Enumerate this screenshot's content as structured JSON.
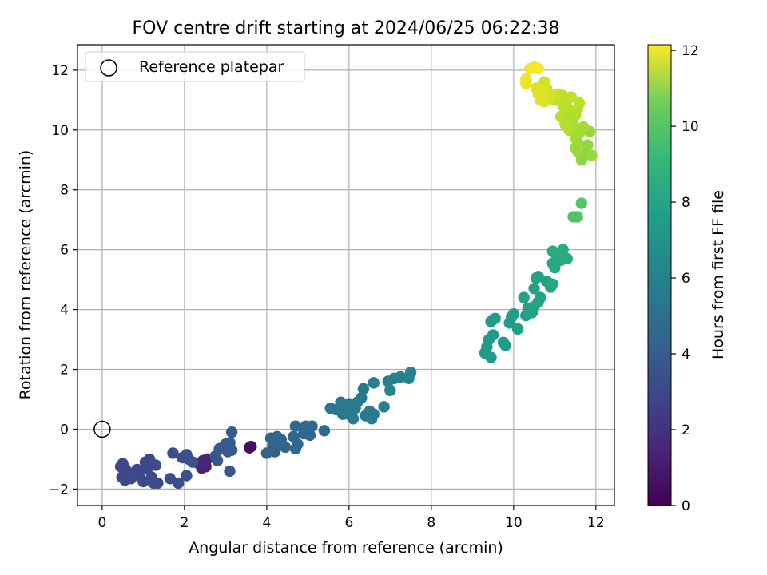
{
  "chart_data": {
    "type": "scatter",
    "title": "FOV centre drift starting at 2024/06/25 06:22:38",
    "xlabel": "Angular distance from reference (arcmin)",
    "ylabel": "Rotation from reference (arcmin)",
    "xlim": [
      -0.6,
      12.45
    ],
    "ylim": [
      -2.55,
      12.85
    ],
    "xticks": [
      0,
      2,
      4,
      6,
      8,
      10,
      12
    ],
    "yticks": [
      -2,
      0,
      2,
      4,
      6,
      8,
      10,
      12
    ],
    "grid": true,
    "legend": {
      "position": "upper-left",
      "entries": [
        {
          "label": "Reference platepar",
          "marker": "open-circle"
        }
      ]
    },
    "reference_point": {
      "x": 0,
      "y": 0
    },
    "colorbar": {
      "label": "Hours from first FF file",
      "range": [
        0,
        12.15
      ],
      "ticks": [
        0,
        2,
        4,
        6,
        8,
        10,
        12
      ],
      "colormap": "viridis"
    },
    "points": [
      [
        3.58,
        -0.62,
        0.3
      ],
      [
        3.62,
        -0.58,
        0.4
      ],
      [
        2.45,
        -1.05,
        1.1
      ],
      [
        2.52,
        -1.25,
        1.2
      ],
      [
        2.42,
        -1.3,
        1.2
      ],
      [
        2.55,
        -1.0,
        1.3
      ],
      [
        2.35,
        -1.15,
        1.4
      ],
      [
        0.45,
        -1.25,
        2.6
      ],
      [
        0.5,
        -1.15,
        2.6
      ],
      [
        0.55,
        -1.3,
        2.6
      ],
      [
        0.6,
        -1.4,
        2.6
      ],
      [
        0.48,
        -1.6,
        2.6
      ],
      [
        0.55,
        -1.7,
        2.7
      ],
      [
        0.7,
        -1.65,
        2.7
      ],
      [
        0.85,
        -1.35,
        2.7
      ],
      [
        0.9,
        -1.55,
        2.7
      ],
      [
        1.0,
        -1.75,
        2.7
      ],
      [
        1.05,
        -1.1,
        2.7
      ],
      [
        1.1,
        -1.3,
        2.7
      ],
      [
        1.15,
        -1.0,
        2.7
      ],
      [
        1.2,
        -1.6,
        2.8
      ],
      [
        1.25,
        -1.8,
        2.8
      ],
      [
        1.3,
        -1.2,
        2.8
      ],
      [
        1.35,
        -1.8,
        2.8
      ],
      [
        1.65,
        -1.65,
        2.9
      ],
      [
        1.72,
        -0.8,
        2.9
      ],
      [
        1.85,
        -1.8,
        2.9
      ],
      [
        1.95,
        -0.95,
        3.0
      ],
      [
        2.05,
        -0.85,
        3.0
      ],
      [
        2.1,
        -1.0,
        3.0
      ],
      [
        2.05,
        -1.55,
        3.0
      ],
      [
        2.2,
        -1.1,
        3.1
      ],
      [
        2.75,
        -0.9,
        3.3
      ],
      [
        2.8,
        -1.05,
        3.3
      ],
      [
        2.85,
        -0.65,
        3.3
      ],
      [
        3.0,
        -0.5,
        3.4
      ],
      [
        3.05,
        -0.75,
        3.4
      ],
      [
        3.1,
        -1.4,
        3.4
      ],
      [
        3.15,
        -0.1,
        3.5
      ],
      [
        3.1,
        -0.45,
        3.5
      ],
      [
        3.15,
        -0.7,
        3.5
      ],
      [
        4.0,
        -0.8,
        3.8
      ],
      [
        4.1,
        -0.3,
        3.8
      ],
      [
        4.15,
        -0.55,
        3.8
      ],
      [
        4.2,
        -0.75,
        3.8
      ],
      [
        4.25,
        -0.25,
        3.9
      ],
      [
        4.3,
        -0.45,
        3.9
      ],
      [
        4.35,
        -0.35,
        3.9
      ],
      [
        4.45,
        -0.6,
        3.9
      ],
      [
        4.65,
        -0.25,
        4.0
      ],
      [
        4.7,
        0.1,
        4.0
      ],
      [
        4.75,
        -0.5,
        4.0
      ],
      [
        4.7,
        -0.65,
        4.0
      ],
      [
        4.9,
        -0.15,
        4.1
      ],
      [
        4.95,
        0.1,
        4.1
      ],
      [
        5.05,
        -0.2,
        4.1
      ],
      [
        5.1,
        0.1,
        4.1
      ],
      [
        5.4,
        -0.05,
        4.2
      ],
      [
        5.55,
        0.7,
        4.8
      ],
      [
        5.7,
        0.65,
        4.8
      ],
      [
        5.8,
        0.9,
        4.8
      ],
      [
        5.85,
        0.5,
        4.9
      ],
      [
        5.9,
        0.75,
        4.9
      ],
      [
        6.0,
        0.85,
        4.9
      ],
      [
        6.05,
        0.45,
        4.9
      ],
      [
        6.1,
        0.35,
        5.0
      ],
      [
        6.15,
        0.7,
        5.0
      ],
      [
        6.2,
        0.9,
        5.0
      ],
      [
        6.3,
        1.05,
        5.0
      ],
      [
        6.35,
        1.35,
        5.0
      ],
      [
        6.4,
        0.45,
        5.1
      ],
      [
        6.5,
        0.6,
        5.1
      ],
      [
        6.55,
        0.35,
        5.1
      ],
      [
        6.6,
        0.5,
        5.1
      ],
      [
        6.6,
        1.55,
        5.2
      ],
      [
        6.85,
        0.75,
        5.2
      ],
      [
        6.95,
        1.6,
        5.3
      ],
      [
        7.0,
        1.3,
        5.3
      ],
      [
        7.1,
        1.7,
        5.3
      ],
      [
        7.25,
        1.75,
        5.3
      ],
      [
        7.45,
        1.7,
        5.4
      ],
      [
        7.5,
        1.9,
        5.4
      ],
      [
        9.3,
        2.55,
        6.6
      ],
      [
        9.35,
        2.75,
        6.6
      ],
      [
        9.4,
        3.0,
        6.6
      ],
      [
        9.45,
        2.4,
        6.6
      ],
      [
        9.5,
        3.15,
        6.6
      ],
      [
        9.45,
        3.6,
        6.7
      ],
      [
        9.55,
        3.7,
        6.7
      ],
      [
        9.75,
        2.9,
        6.7
      ],
      [
        9.8,
        2.8,
        6.7
      ],
      [
        9.95,
        3.75,
        6.8
      ],
      [
        9.9,
        3.55,
        6.8
      ],
      [
        10.0,
        3.85,
        6.8
      ],
      [
        10.1,
        3.35,
        6.8
      ],
      [
        10.25,
        4.4,
        6.9
      ],
      [
        10.3,
        3.8,
        6.9
      ],
      [
        10.35,
        4.05,
        6.9
      ],
      [
        10.45,
        3.9,
        6.9
      ],
      [
        10.5,
        4.1,
        6.9
      ],
      [
        10.5,
        4.7,
        7.0
      ],
      [
        10.55,
        5.05,
        7.0
      ],
      [
        10.6,
        4.25,
        7.0
      ],
      [
        10.6,
        5.1,
        7.0
      ],
      [
        10.65,
        4.4,
        7.0
      ],
      [
        10.8,
        4.95,
        7.1
      ],
      [
        10.9,
        4.75,
        7.1
      ],
      [
        10.95,
        4.85,
        7.2
      ],
      [
        10.95,
        5.55,
        7.2
      ],
      [
        11.0,
        5.4,
        7.3
      ],
      [
        11.05,
        5.8,
        7.3
      ],
      [
        11.15,
        5.65,
        7.4
      ],
      [
        11.2,
        6.0,
        7.4
      ],
      [
        11.3,
        5.7,
        7.4
      ],
      [
        10.95,
        5.95,
        7.4
      ],
      [
        11.45,
        7.1,
        8.8
      ],
      [
        11.55,
        7.1,
        8.8
      ],
      [
        11.65,
        7.55,
        8.9
      ],
      [
        11.65,
        9.0,
        10.1
      ],
      [
        11.75,
        9.2,
        10.1
      ],
      [
        11.8,
        9.5,
        10.2
      ],
      [
        11.85,
        9.95,
        10.2
      ],
      [
        11.9,
        9.15,
        10.2
      ],
      [
        11.5,
        9.4,
        10.3
      ],
      [
        11.55,
        9.6,
        10.3
      ],
      [
        11.55,
        9.3,
        10.3
      ],
      [
        11.6,
        9.9,
        10.4
      ],
      [
        11.5,
        9.75,
        10.4
      ],
      [
        11.7,
        10.1,
        10.5
      ],
      [
        11.45,
        10.2,
        10.6
      ],
      [
        11.5,
        10.5,
        10.6
      ],
      [
        11.35,
        10.0,
        10.7
      ],
      [
        11.4,
        10.45,
        10.7
      ],
      [
        11.3,
        10.75,
        10.8
      ],
      [
        11.25,
        10.2,
        10.8
      ],
      [
        11.55,
        10.7,
        10.8
      ],
      [
        11.6,
        10.9,
        10.9
      ],
      [
        11.15,
        10.45,
        10.9
      ],
      [
        11.2,
        10.8,
        10.9
      ],
      [
        11.3,
        11.0,
        11.0
      ],
      [
        11.1,
        11.2,
        11.0
      ],
      [
        11.2,
        11.15,
        11.0
      ],
      [
        11.4,
        11.1,
        11.0
      ],
      [
        11.0,
        11.0,
        11.1
      ],
      [
        10.8,
        11.4,
        11.3
      ],
      [
        10.75,
        11.6,
        11.3
      ],
      [
        10.9,
        11.2,
        11.4
      ],
      [
        10.85,
        11.05,
        11.4
      ],
      [
        10.75,
        10.95,
        11.5
      ],
      [
        10.6,
        11.2,
        11.5
      ],
      [
        10.55,
        11.4,
        11.5
      ],
      [
        10.65,
        11.0,
        11.6
      ],
      [
        10.7,
        11.3,
        11.6
      ],
      [
        10.3,
        11.55,
        11.8
      ],
      [
        10.3,
        11.7,
        11.8
      ],
      [
        10.4,
        12.05,
        12.0
      ],
      [
        10.5,
        12.1,
        12.0
      ],
      [
        10.6,
        12.05,
        12.1
      ]
    ]
  }
}
